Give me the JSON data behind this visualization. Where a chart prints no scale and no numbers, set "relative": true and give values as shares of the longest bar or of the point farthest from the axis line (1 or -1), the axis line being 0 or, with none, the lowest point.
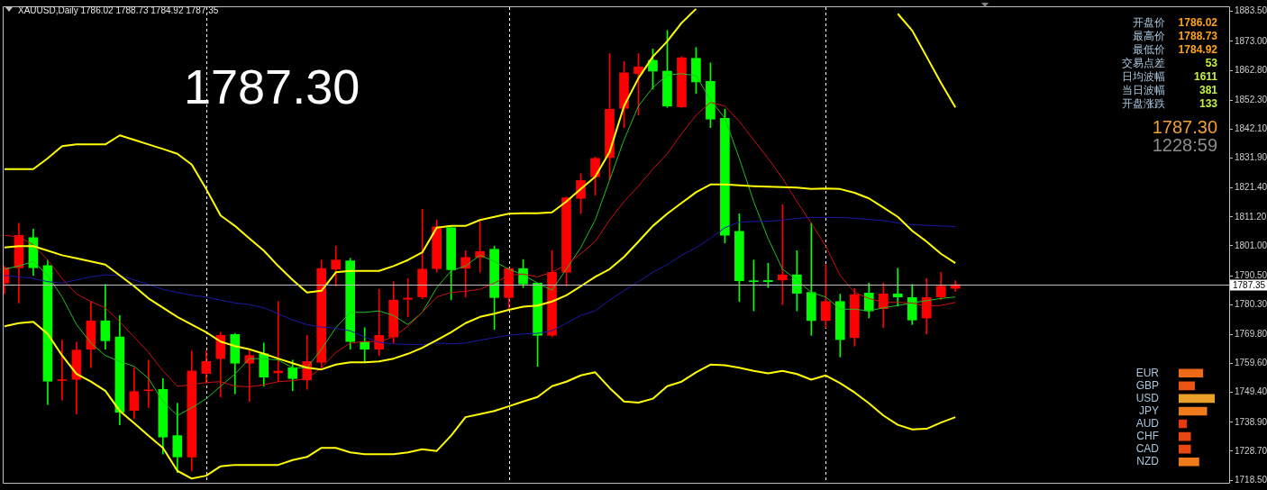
{
  "chart_data": [
    {
      "type": "candlestick",
      "title": "XAUUSD,Daily  1786.02 1788.73 1784.92 1787.35",
      "categories": [
        null,
        null,
        null,
        null,
        null,
        null,
        null,
        null,
        null,
        null,
        null,
        null,
        null,
        null,
        null,
        null,
        null,
        null,
        null,
        null,
        null,
        null,
        null,
        null,
        null,
        null,
        null,
        null,
        null,
        null,
        null,
        null,
        null,
        null,
        null,
        null,
        null,
        null,
        null,
        null,
        null,
        null,
        null,
        null,
        null,
        null,
        null,
        null,
        null,
        null,
        null,
        null,
        null,
        null,
        null,
        null,
        null,
        null,
        null,
        null,
        null,
        null,
        null,
        null,
        null,
        null,
        null
      ],
      "ohlc": [
        [
          1787.9,
          1793.8,
          1784.1,
          1793.3
        ],
        [
          1793.3,
          1809.0,
          1780.9,
          1804.7
        ],
        [
          1803.9,
          1806.9,
          1790.6,
          1793.3
        ],
        [
          1794.1,
          1796.0,
          1745.1,
          1753.4
        ],
        [
          1753.6,
          1767.8,
          1746.7,
          1753.9
        ],
        [
          1754.0,
          1767.1,
          1741.8,
          1764.3
        ],
        [
          1764.6,
          1781.4,
          1758.1,
          1774.6
        ],
        [
          1774.6,
          1787.4,
          1764.6,
          1767.6
        ],
        [
          1768.9,
          1776.5,
          1738.0,
          1742.4
        ],
        [
          1743.1,
          1758.1,
          1740.2,
          1749.7
        ],
        [
          1750.0,
          1760.8,
          1744.0,
          1750.3
        ],
        [
          1750.5,
          1754.3,
          1727.7,
          1733.7
        ],
        [
          1734.2,
          1745.6,
          1721.2,
          1726.7
        ],
        [
          1726.7,
          1764.0,
          1721.8,
          1757.0
        ],
        [
          1756.1,
          1764.0,
          1752.7,
          1760.3
        ],
        [
          1761.3,
          1770.6,
          1747.8,
          1769.5
        ],
        [
          1769.8,
          1770.2,
          1748.9,
          1759.7
        ],
        [
          1759.7,
          1764.6,
          1746.2,
          1762.4
        ],
        [
          1763.0,
          1766.8,
          1751.6,
          1754.8
        ],
        [
          1756.3,
          1781.4,
          1753.2,
          1756.9
        ],
        [
          1758.1,
          1760.8,
          1750.0,
          1754.3
        ],
        [
          1753.8,
          1769.5,
          1750.5,
          1760.3
        ],
        [
          1760.0,
          1796.0,
          1758.1,
          1793.0
        ],
        [
          1792.8,
          1800.9,
          1786.8,
          1796.0
        ],
        [
          1795.7,
          1796.6,
          1764.6,
          1767.3
        ],
        [
          1767.3,
          1772.2,
          1760.3,
          1764.6
        ],
        [
          1764.6,
          1785.7,
          1762.4,
          1769.5
        ],
        [
          1768.9,
          1788.4,
          1766.8,
          1781.9
        ],
        [
          1782.2,
          1789.5,
          1776.0,
          1782.6
        ],
        [
          1783.0,
          1813.9,
          1782.4,
          1792.8
        ],
        [
          1793.0,
          1810.1,
          1791.7,
          1807.7
        ],
        [
          1807.4,
          1807.6,
          1782.0,
          1792.6
        ],
        [
          1793.1,
          1799.3,
          1783.0,
          1796.9
        ],
        [
          1796.9,
          1809.6,
          1791.7,
          1799.0
        ],
        [
          1799.8,
          1800.9,
          1771.6,
          1782.8
        ],
        [
          1782.8,
          1793.3,
          1778.7,
          1793.0
        ],
        [
          1793.0,
          1796.2,
          1786.3,
          1787.6
        ],
        [
          1787.9,
          1787.9,
          1758.6,
          1769.5
        ],
        [
          1769.5,
          1799.3,
          1769.0,
          1791.7
        ],
        [
          1791.7,
          1818.2,
          1786.8,
          1817.9
        ],
        [
          1817.7,
          1826.4,
          1812.3,
          1824.0
        ],
        [
          1825.3,
          1832.3,
          1818.8,
          1831.8
        ],
        [
          1832.1,
          1868.7,
          1824.2,
          1849.1
        ],
        [
          1849.4,
          1865.9,
          1842.6,
          1861.9
        ],
        [
          1861.6,
          1868.7,
          1847.0,
          1864.0
        ],
        [
          1866.3,
          1870.3,
          1856.2,
          1862.5
        ],
        [
          1862.5,
          1876.8,
          1849.7,
          1850.2
        ],
        [
          1849.9,
          1867.6,
          1849.7,
          1867.2
        ],
        [
          1867.0,
          1870.8,
          1854.6,
          1858.7
        ],
        [
          1858.9,
          1865.4,
          1842.6,
          1845.6
        ],
        [
          1845.9,
          1849.1,
          1802.0,
          1804.7
        ],
        [
          1806.1,
          1812.3,
          1781.4,
          1788.7
        ],
        [
          1788.6,
          1796.0,
          1778.1,
          1788.4
        ],
        [
          1788.8,
          1794.9,
          1786.3,
          1788.4
        ],
        [
          1789.0,
          1815.5,
          1780.3,
          1790.8
        ],
        [
          1790.8,
          1799.3,
          1778.1,
          1784.3
        ],
        [
          1784.6,
          1809.0,
          1769.5,
          1774.7
        ],
        [
          1774.7,
          1794.4,
          1772.2,
          1781.4
        ],
        [
          1781.4,
          1784.0,
          1761.9,
          1768.0
        ],
        [
          1768.7,
          1786.0,
          1765.7,
          1783.8
        ],
        [
          1784.4,
          1787.9,
          1775.6,
          1778.1
        ],
        [
          1778.9,
          1787.9,
          1772.2,
          1784.1
        ],
        [
          1784.1,
          1793.1,
          1779.8,
          1783.0
        ],
        [
          1782.8,
          1787.4,
          1773.3,
          1774.9
        ],
        [
          1775.6,
          1789.5,
          1770.0,
          1782.8
        ],
        [
          1783.0,
          1791.7,
          1782.0,
          1786.8
        ],
        [
          1786.02,
          1788.73,
          1784.92,
          1787.35
        ]
      ],
      "colors": [
        "#ff0000",
        "#ff0000",
        "#00ff00",
        "#00ff00",
        "#ff0000",
        "#ff0000",
        "#ff0000",
        "#00ff00",
        "#00ff00",
        "#ff0000",
        "#ff0000",
        "#00ff00",
        "#00ff00",
        "#ff0000",
        "#ff0000",
        "#ff0000",
        "#00ff00",
        "#ff0000",
        "#00ff00",
        "#ff0000",
        "#00ff00",
        "#ff0000",
        "#ff0000",
        "#ff0000",
        "#00ff00",
        "#00ff00",
        "#ff0000",
        "#ff0000",
        "#ff0000",
        "#ff0000",
        "#ff0000",
        "#00ff00",
        "#ff0000",
        "#ff0000",
        "#00ff00",
        "#ff0000",
        "#00ff00",
        "#00ff00",
        "#ff0000",
        "#ff0000",
        "#ff0000",
        "#ff0000",
        "#ff0000",
        "#ff0000",
        "#ff0000",
        "#00ff00",
        "#00ff00",
        "#ff0000",
        "#00ff00",
        "#00ff00",
        "#00ff00",
        "#00ff00",
        "#00ff00",
        "#00ff00",
        "#ff0000",
        "#00ff00",
        "#00ff00",
        "#ff0000",
        "#00ff00",
        "#ff0000",
        "#00ff00",
        "#ff0000",
        "#00ff00",
        "#00ff00",
        "#ff0000",
        "#ff0000",
        "#ff0000"
      ],
      "series": [
        {
          "type": "line",
          "color": "#ffff00",
          "values": [
            1828.0,
            1828.0,
            1828.0,
            1831.8,
            1836.1,
            1836.7,
            1836.7,
            1836.7,
            1839.9,
            1838.3,
            1836.7,
            1835.1,
            1833.4,
            1829.6,
            1821.0,
            1811.7,
            1808.0,
            1803.6,
            1799.3,
            1793.9,
            1789.0,
            1784.6,
            1785.2,
            1791.7,
            1792.2,
            1792.2,
            1792.2,
            1793.9,
            1796.0,
            1798.7,
            1807.4,
            1808.0,
            1808.0,
            1810.1,
            1811.2,
            1812.3,
            1812.5,
            1812.5,
            1812.8,
            1816.6,
            1821.0,
            1825.3,
            1834.0,
            1850.2,
            1860.0,
            1867.6,
            1873.0,
            1879.5,
            1884.4,
            null,
            null,
            null,
            null,
            null,
            null,
            null,
            null,
            null,
            null,
            null,
            null,
            null,
            1882.7,
            1876.8,
            1867.6,
            1858.4,
            1849.7
          ]
        },
        {
          "type": "line",
          "color": "#ffff00",
          "values": [
            1800.4,
            1800.9,
            1800.9,
            1799.3,
            1797.7,
            1796.6,
            1795.5,
            1794.4,
            1790.6,
            1786.8,
            1782.5,
            1779.2,
            1776.0,
            1773.3,
            1770.6,
            1767.3,
            1765.7,
            1764.6,
            1763.0,
            1761.3,
            1759.7,
            1758.1,
            1757.5,
            1759.2,
            1760.0,
            1760.0,
            1760.3,
            1761.3,
            1763.0,
            1765.1,
            1767.8,
            1770.6,
            1773.8,
            1776.0,
            1777.1,
            1778.5,
            1779.6,
            1780.0,
            1781.4,
            1783.6,
            1786.8,
            1790.1,
            1792.8,
            1797.1,
            1802.5,
            1808.0,
            1812.3,
            1816.1,
            1819.9,
            1822.6,
            1822.6,
            1822.3,
            1822.0,
            1821.8,
            1821.7,
            1821.5,
            1821.0,
            1821.2,
            1821.0,
            1819.7,
            1817.7,
            1814.5,
            1811.2,
            1806.3,
            1802.5,
            1798.2,
            1794.9
          ]
        },
        {
          "type": "line",
          "color": "#ffff00",
          "values": [
            1772.7,
            1773.8,
            1774.3,
            1770.0,
            1762.4,
            1755.9,
            1753.2,
            1750.0,
            1742.9,
            1738.6,
            1734.2,
            1729.9,
            1721.8,
            1719.1,
            1720.1,
            1723.4,
            1723.9,
            1723.9,
            1723.9,
            1723.9,
            1725.6,
            1726.7,
            1729.9,
            1729.9,
            1728.3,
            1727.7,
            1727.7,
            1727.7,
            1728.3,
            1729.4,
            1728.8,
            1734.2,
            1740.7,
            1741.8,
            1742.9,
            1744.5,
            1746.2,
            1747.8,
            1751.6,
            1753.2,
            1755.4,
            1756.5,
            1751.0,
            1746.2,
            1745.8,
            1747.2,
            1751.6,
            1753.2,
            1756.5,
            1759.2,
            1759.0,
            1758.1,
            1757.0,
            1756.1,
            1757.0,
            1755.9,
            1753.9,
            1755.4,
            1752.7,
            1749.4,
            1745.6,
            1741.3,
            1738.0,
            1736.4,
            1736.6,
            1738.8,
            1740.7
          ]
        },
        {
          "type": "line",
          "color": "#1a1aa8",
          "values": [
            1790.6,
            1790.1,
            1789.5,
            1788.4,
            1787.9,
            1789.0,
            1790.1,
            1790.8,
            1790.6,
            1789.0,
            1787.4,
            1785.7,
            1784.6,
            1783.6,
            1783.0,
            1781.9,
            1780.9,
            1780.3,
            1779.2,
            1777.1,
            1774.9,
            1773.3,
            1772.4,
            1772.0,
            1771.1,
            1768.9,
            1767.0,
            1766.5,
            1766.3,
            1766.2,
            1766.8,
            1766.5,
            1766.8,
            1767.8,
            1768.7,
            1769.5,
            1770.0,
            1770.2,
            1771.1,
            1773.8,
            1776.5,
            1778.1,
            1781.9,
            1785.2,
            1788.4,
            1791.7,
            1794.4,
            1797.7,
            1800.4,
            1803.6,
            1807.4,
            1809.3,
            1809.6,
            1809.6,
            1810.1,
            1810.7,
            1811.0,
            1811.0,
            1811.0,
            1810.7,
            1810.3,
            1809.9,
            1809.0,
            1808.5,
            1808.2,
            1808.0,
            1807.8
          ]
        },
        {
          "type": "line",
          "color": "#d01010",
          "values": [
            1804.7,
            1804.2,
            1801.4,
            1796.0,
            1789.5,
            1784.1,
            1781.4,
            1779.2,
            1774.3,
            1768.9,
            1763.5,
            1757.0,
            1751.6,
            1752.1,
            1752.9,
            1753.2,
            1751.6,
            1751.4,
            1752.1,
            1753.2,
            1753.5,
            1754.3,
            1758.1,
            1763.5,
            1766.8,
            1767.3,
            1767.3,
            1768.9,
            1772.7,
            1777.6,
            1783.0,
            1784.6,
            1785.0,
            1785.7,
            1787.9,
            1790.6,
            1791.1,
            1790.1,
            1791.7,
            1794.4,
            1798.2,
            1802.5,
            1810.1,
            1816.6,
            1822.0,
            1828.0,
            1833.4,
            1840.5,
            1847.0,
            1851.5,
            1850.2,
            1844.8,
            1838.3,
            1831.8,
            1824.8,
            1816.6,
            1809.0,
            1800.9,
            1790.6,
            1784.6,
            1782.5,
            1781.1,
            1781.1,
            1780.9,
            1779.8,
            1780.0,
            1781.1
          ]
        },
        {
          "type": "line",
          "color": "#20c020",
          "values": [
            1792.8,
            1793.9,
            1795.5,
            1790.6,
            1783.0,
            1773.3,
            1766.8,
            1762.4,
            1760.3,
            1758.6,
            1754.3,
            1746.2,
            1741.3,
            1744.0,
            1747.2,
            1751.6,
            1755.9,
            1761.3,
            1761.3,
            1760.8,
            1758.1,
            1758.1,
            1764.6,
            1772.2,
            1777.6,
            1777.6,
            1778.1,
            1776.5,
            1773.3,
            1777.6,
            1786.3,
            1792.2,
            1793.9,
            1797.7,
            1795.5,
            1792.8,
            1790.8,
            1787.9,
            1785.4,
            1792.8,
            1800.4,
            1810.1,
            1824.2,
            1838.3,
            1850.2,
            1856.7,
            1861.1,
            1861.6,
            1860.9,
            1852.4,
            1845.9,
            1831.8,
            1816.6,
            1803.6,
            1792.8,
            1789.0,
            1784.6,
            1783.0,
            1778.7,
            1778.7,
            1778.1,
            1779.2,
            1780.0,
            1780.9,
            1781.7,
            1782.5,
            1783.0
          ]
        }
      ],
      "ylim": [
        1717.6,
        1885.0
      ],
      "yticks": [
        {
          "value": 1883.5,
          "label": "1883.50"
        },
        {
          "value": 1873.0,
          "label": "1873.00"
        },
        {
          "value": 1862.8,
          "label": "1862.80"
        },
        {
          "value": 1852.3,
          "label": "1852.30"
        },
        {
          "value": 1842.1,
          "label": "1842.10"
        },
        {
          "value": 1831.9,
          "label": "1831.90"
        },
        {
          "value": 1821.4,
          "label": "1821.40"
        },
        {
          "value": 1811.2,
          "label": "1811.20"
        },
        {
          "value": 1801.0,
          "label": "1801.00"
        },
        {
          "value": 1790.5,
          "label": "1790.50"
        },
        {
          "value": 1780.3,
          "label": "1780.30"
        },
        {
          "value": 1769.8,
          "label": "1769.80"
        },
        {
          "value": 1759.6,
          "label": "1759.60"
        },
        {
          "value": 1749.4,
          "label": "1749.40"
        },
        {
          "value": 1738.9,
          "label": "1738.90"
        },
        {
          "value": 1728.7,
          "label": "1728.70"
        },
        {
          "value": 1718.5,
          "label": "1718.50"
        }
      ],
      "ref_lines": [
        {
          "axis": "y",
          "value": 1787.35,
          "label": "1787.35",
          "color": "#c0c0c0"
        }
      ],
      "annotations": [
        "1787.30",
        "开盘价",
        "1786.02",
        "最高价",
        "1788.73",
        "最低价",
        "1784.92",
        "交易点差",
        "53",
        "日均波幅",
        "1611",
        "当日波幅",
        "381",
        "开盘涨跌",
        "133",
        "1787.30",
        "1228:59"
      ],
      "grid": "x",
      "legend": false,
      "tick_labels": "y",
      "marker": "none"
    },
    {
      "type": "bar",
      "orientation": "horizontal",
      "relative": true,
      "categories": [
        "EUR",
        "GBP",
        "USD",
        "JPY",
        "AUD",
        "CHF",
        "CAD",
        "NZD"
      ],
      "values": [
        0.67,
        0.44,
        1,
        0.78,
        0.22,
        0.33,
        0.33,
        0.56
      ],
      "colors": [
        "#ee6a18",
        "#ec5414",
        "#e8a028",
        "#ee7a1c",
        "#e83a10",
        "#ea4612",
        "#ea4612",
        "#ee7a1c"
      ]
    }
  ]
}
